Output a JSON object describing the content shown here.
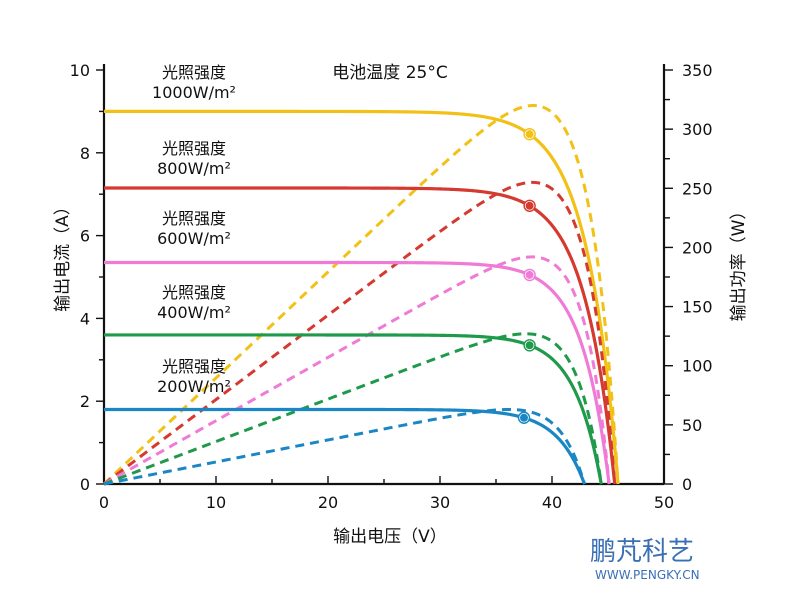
{
  "chart_data": {
    "type": "line",
    "title": "电池温度 25°C",
    "xlabel": "输出电压（V）",
    "ylabel_left": "输出电流（A）",
    "ylabel_right": "输出功率（W）",
    "xlim": [
      0,
      50
    ],
    "ylim_left": [
      0,
      10
    ],
    "ylim_right": [
      0,
      350
    ],
    "x_ticks": [
      0,
      10,
      20,
      30,
      40,
      50
    ],
    "y_left_ticks": [
      0,
      2,
      4,
      6,
      8,
      10
    ],
    "y_right_ticks": [
      0,
      50,
      100,
      150,
      200,
      250,
      300,
      350
    ],
    "grid": false,
    "series": [
      {
        "name": "光照强度 1000W/m²",
        "label_line1": "光照强度",
        "label_line2": "1000W/m²",
        "color": "#f2c117",
        "isc": 9.0,
        "voc": 45.9,
        "mpp": {
          "v": 38.0,
          "i": 8.45,
          "p": 320
        }
      },
      {
        "name": "光照强度 800W/m²",
        "label_line1": "光照强度",
        "label_line2": "800W/m²",
        "color": "#d43a2f",
        "isc": 7.15,
        "voc": 45.6,
        "mpp": {
          "v": 38.0,
          "i": 6.72,
          "p": 255
        }
      },
      {
        "name": "光照强度 600W/m²",
        "label_line1": "光照强度",
        "label_line2": "600W/m²",
        "color": "#f07bd6",
        "isc": 5.35,
        "voc": 45.1,
        "mpp": {
          "v": 38.0,
          "i": 5.05,
          "p": 192
        }
      },
      {
        "name": "光照强度 400W/m²",
        "label_line1": "光照强度",
        "label_line2": "400W/m²",
        "color": "#1f9a4b",
        "isc": 3.6,
        "voc": 44.4,
        "mpp": {
          "v": 38.0,
          "i": 3.35,
          "p": 127
        }
      },
      {
        "name": "光照强度 200W/m²",
        "label_line1": "光照强度",
        "label_line2": "200W/m²",
        "color": "#1a86c4",
        "isc": 1.8,
        "voc": 42.9,
        "mpp": {
          "v": 37.5,
          "i": 1.6,
          "p": 63
        }
      }
    ]
  },
  "watermark": {
    "name": "鹏芃科艺",
    "url": "WWW.PENGKY.CN"
  }
}
